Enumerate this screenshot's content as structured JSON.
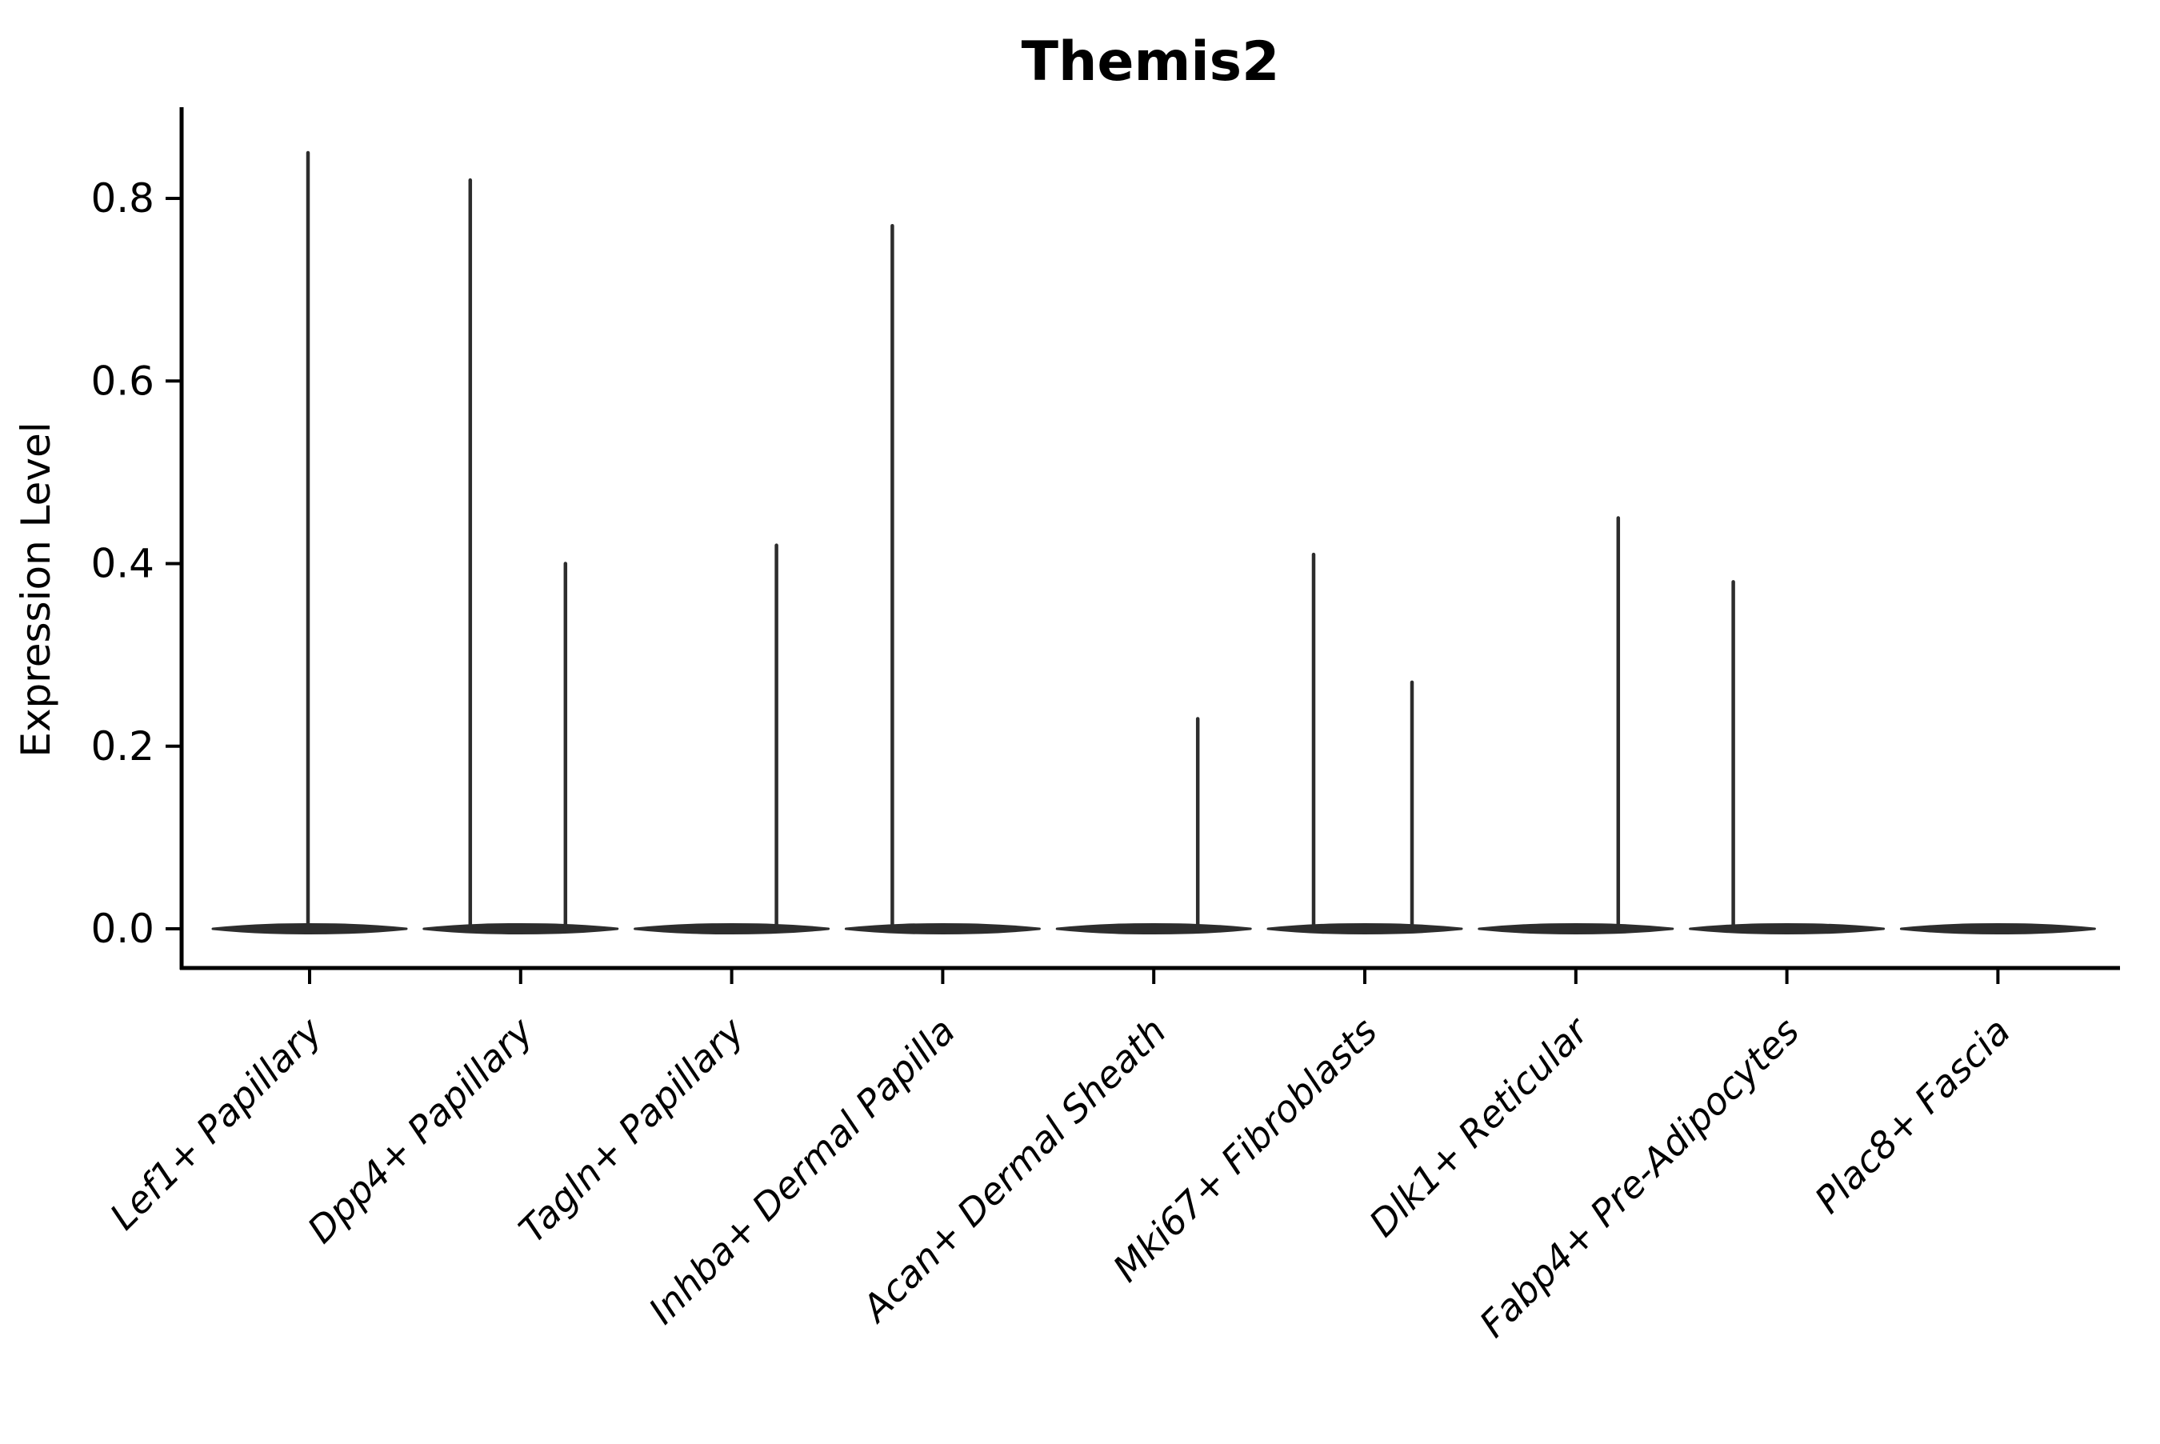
{
  "chart_data": {
    "type": "violin",
    "title": "Themis2",
    "ylabel": "Expression Level",
    "xlabel": "",
    "grid": false,
    "legend": "none",
    "background_color": "#ffffff",
    "violin_color": "#2d2d2d",
    "axis_color": "#000000",
    "ylim": [
      -0.043,
      0.9
    ],
    "yticks": [
      0.0,
      0.2,
      0.4,
      0.6,
      0.8
    ],
    "ytick_labels": [
      "0.0",
      "0.2",
      "0.4",
      "0.6",
      "0.8"
    ],
    "categories": [
      "Lef1+ Papillary",
      "Dpp4+ Papillary",
      "Tagln+ Papillary",
      "Inhba+ Dermal Papilla",
      "Acan+ Dermal Sheath",
      "Mki67+ Fibroblasts",
      "Dlk1+ Reticular",
      "Fabp4+ Pre-Adipocytes",
      "Plac8+ Fascia"
    ],
    "violins": [
      {
        "category": "Lef1+ Papillary",
        "base_value": 0.0,
        "spikes": [
          {
            "dx": -2,
            "max": 0.85
          }
        ]
      },
      {
        "category": "Dpp4+ Papillary",
        "base_value": 0.0,
        "spikes": [
          {
            "dx": -63,
            "max": 0.82
          },
          {
            "dx": 56,
            "max": 0.4
          }
        ]
      },
      {
        "category": "Tagln+ Papillary",
        "base_value": 0.0,
        "spikes": [
          {
            "dx": 56,
            "max": 0.42
          }
        ]
      },
      {
        "category": "Inhba+ Dermal Papilla",
        "base_value": 0.0,
        "spikes": [
          {
            "dx": -63,
            "max": 0.77
          }
        ]
      },
      {
        "category": "Acan+ Dermal Sheath",
        "base_value": 0.0,
        "spikes": [
          {
            "dx": 55,
            "max": 0.23
          }
        ]
      },
      {
        "category": "Mki67+ Fibroblasts",
        "base_value": 0.0,
        "spikes": [
          {
            "dx": -64,
            "max": 0.41
          },
          {
            "dx": 59,
            "max": 0.27
          }
        ]
      },
      {
        "category": "Dlk1+ Reticular",
        "base_value": 0.0,
        "spikes": [
          {
            "dx": 53,
            "max": 0.45
          }
        ]
      },
      {
        "category": "Fabp4+ Pre-Adipocytes",
        "base_value": 0.0,
        "spikes": [
          {
            "dx": -67,
            "max": 0.38
          }
        ]
      },
      {
        "category": "Plac8+ Fascia",
        "base_value": 0.0,
        "spikes": []
      }
    ]
  }
}
